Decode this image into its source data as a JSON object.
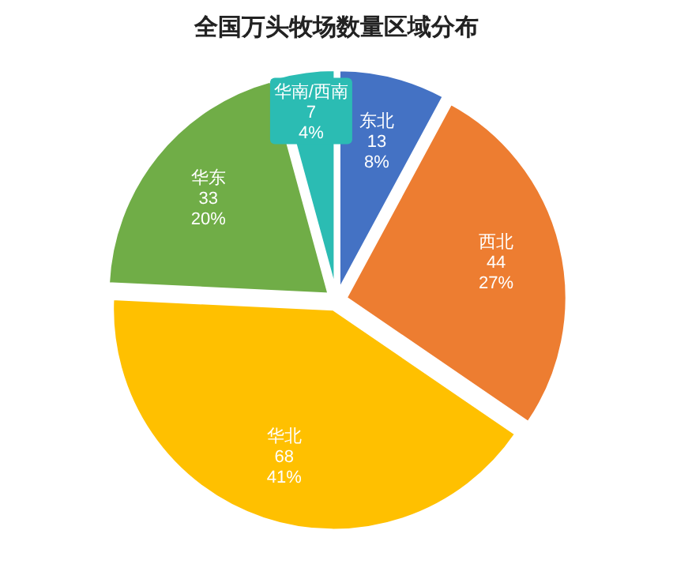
{
  "chart_data": {
    "type": "pie",
    "title": "全国万头牧场数量区域分布",
    "categories": [
      "东北",
      "西北",
      "华北",
      "华东",
      "华南/西南"
    ],
    "values": [
      13,
      44,
      68,
      33,
      7
    ],
    "colors": [
      "#4472c4",
      "#ed7d31",
      "#ffc000",
      "#70ad47",
      "#2bbcb3"
    ],
    "value_labels": [
      "13\n8%",
      "44\n27%",
      "68\n41%",
      "33\n20%",
      "7\n4%"
    ]
  }
}
